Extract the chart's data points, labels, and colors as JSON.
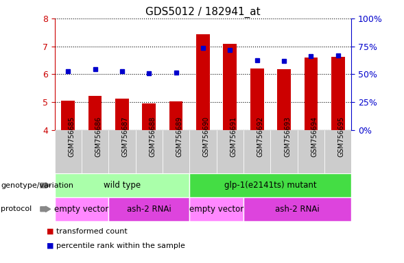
{
  "title": "GDS5012 / 182941_at",
  "samples": [
    "GSM756685",
    "GSM756686",
    "GSM756687",
    "GSM756688",
    "GSM756689",
    "GSM756690",
    "GSM756691",
    "GSM756692",
    "GSM756693",
    "GSM756694",
    "GSM756695"
  ],
  "bar_values": [
    5.05,
    5.22,
    5.12,
    4.97,
    5.04,
    7.43,
    7.1,
    6.2,
    6.18,
    6.6,
    6.63
  ],
  "dot_values": [
    6.1,
    6.18,
    6.1,
    6.03,
    6.07,
    6.95,
    6.88,
    6.5,
    6.48,
    6.65,
    6.68
  ],
  "bar_bottom": 4.0,
  "ylim_left": [
    4.0,
    8.0
  ],
  "ylim_right": [
    0,
    100
  ],
  "yticks_left": [
    4,
    5,
    6,
    7,
    8
  ],
  "yticks_right": [
    0,
    25,
    50,
    75,
    100
  ],
  "ytick_labels_right": [
    "0%",
    "25%",
    "50%",
    "75%",
    "100%"
  ],
  "bar_color": "#CC0000",
  "dot_color": "#0000CC",
  "xtick_bg_color": "#CCCCCC",
  "genotype_groups": [
    {
      "label": "wild type",
      "start": 0,
      "end": 5,
      "color": "#AAFFAA"
    },
    {
      "label": "glp-1(e2141ts) mutant",
      "start": 5,
      "end": 11,
      "color": "#44DD44"
    }
  ],
  "protocol_groups": [
    {
      "label": "empty vector",
      "start": 0,
      "end": 2,
      "color": "#FF88FF"
    },
    {
      "label": "ash-2 RNAi",
      "start": 2,
      "end": 5,
      "color": "#DD44DD"
    },
    {
      "label": "empty vector",
      "start": 5,
      "end": 7,
      "color": "#FF88FF"
    },
    {
      "label": "ash-2 RNAi",
      "start": 7,
      "end": 11,
      "color": "#DD44DD"
    }
  ],
  "legend_items": [
    {
      "label": "transformed count",
      "color": "#CC0000"
    },
    {
      "label": "percentile rank within the sample",
      "color": "#0000CC"
    }
  ],
  "left_axis_color": "#CC0000",
  "right_axis_color": "#0000CC",
  "genotype_label": "genotype/variation",
  "protocol_label": "protocol",
  "arrow_color": "#888888"
}
